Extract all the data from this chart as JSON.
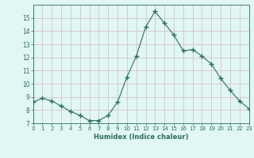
{
  "x": [
    0,
    1,
    2,
    3,
    4,
    5,
    6,
    7,
    8,
    9,
    10,
    11,
    12,
    13,
    14,
    15,
    16,
    17,
    18,
    19,
    20,
    21,
    22,
    23
  ],
  "y": [
    8.6,
    8.9,
    8.7,
    8.3,
    7.9,
    7.6,
    7.2,
    7.2,
    7.6,
    8.6,
    10.5,
    12.1,
    14.3,
    15.5,
    14.6,
    13.7,
    12.5,
    12.6,
    12.1,
    11.5,
    10.4,
    9.5,
    8.7,
    8.1
  ],
  "xlabel": "Humidex (Indice chaleur)",
  "ylim": [
    7,
    16
  ],
  "xlim": [
    0,
    23
  ],
  "yticks": [
    7,
    8,
    9,
    10,
    11,
    12,
    13,
    14,
    15
  ],
  "xticks": [
    0,
    1,
    2,
    3,
    4,
    5,
    6,
    7,
    8,
    9,
    10,
    11,
    12,
    13,
    14,
    15,
    16,
    17,
    18,
    19,
    20,
    21,
    22,
    23
  ],
  "xtick_labels": [
    "0",
    "1",
    "2",
    "3",
    "4",
    "5",
    "6",
    "7",
    "8",
    "9",
    "10",
    "11",
    "12",
    "13",
    "14",
    "15",
    "16",
    "17",
    "18",
    "19",
    "20",
    "21",
    "22",
    "23"
  ],
  "line_color": "#2e6b5e",
  "marker": "+",
  "marker_size": 4,
  "bg_color": "#e0f7f4",
  "grid_color": "#d4b8b8",
  "fig_bg": "#e0f7f4"
}
